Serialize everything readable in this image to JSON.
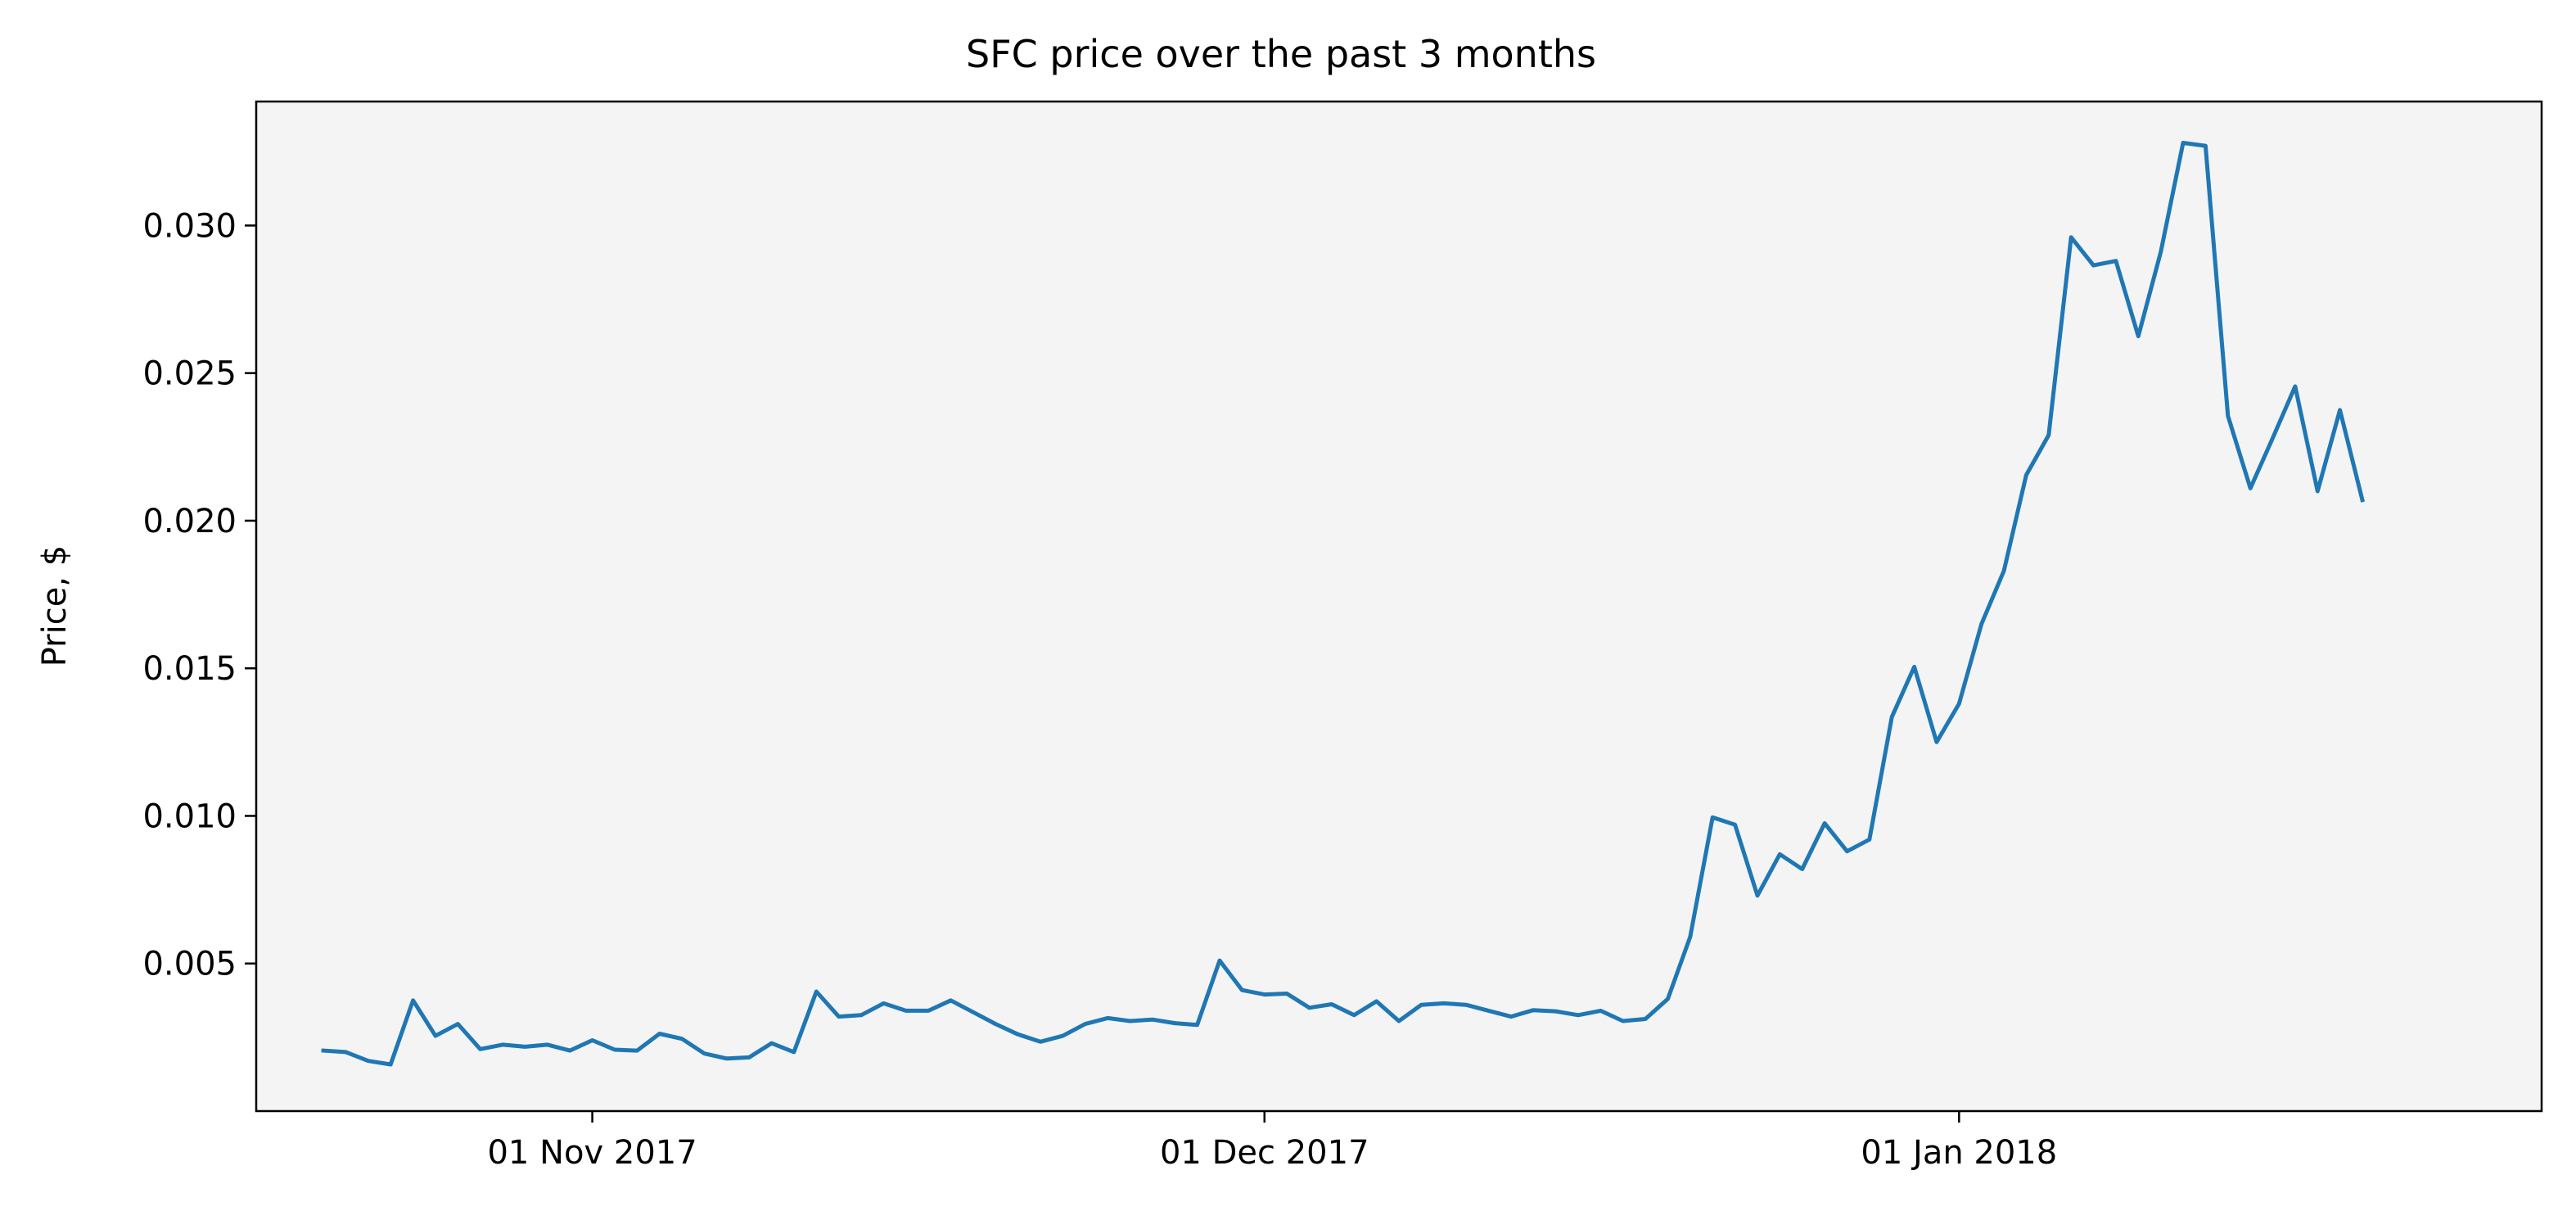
{
  "chart_data": {
    "type": "line",
    "title": "SFC price over the past 3 months",
    "xlabel": "",
    "ylabel": "Price, $",
    "x_start": "2017-10-20",
    "x_range": [
      "2017-10-17",
      "2018-01-27"
    ],
    "ylim": [
      0.0,
      0.0342
    ],
    "grid": false,
    "background": "#f4f4f4",
    "line_color": "#1f77b4",
    "x_ticks": [
      {
        "date": "2017-11-01",
        "label": "01 Nov 2017"
      },
      {
        "date": "2017-12-01",
        "label": "01 Dec 2017"
      },
      {
        "date": "2018-01-01",
        "label": "01 Jan 2018"
      }
    ],
    "y_ticks": [
      {
        "value": 0.005,
        "label": "0.005"
      },
      {
        "value": 0.01,
        "label": "0.010"
      },
      {
        "value": 0.015,
        "label": "0.015"
      },
      {
        "value": 0.02,
        "label": "0.020"
      },
      {
        "value": 0.025,
        "label": "0.025"
      },
      {
        "value": 0.03,
        "label": "0.030"
      }
    ],
    "series": [
      {
        "name": "",
        "values": [
          0.00205,
          0.002,
          0.0017,
          0.00158,
          0.00375,
          0.00255,
          0.00295,
          0.0021,
          0.00225,
          0.00218,
          0.00225,
          0.00205,
          0.0024,
          0.00208,
          0.00205,
          0.00262,
          0.00245,
          0.00195,
          0.00178,
          0.00182,
          0.0023,
          0.002,
          0.00405,
          0.0032,
          0.00325,
          0.00365,
          0.0034,
          0.0034,
          0.00375,
          0.00335,
          0.00295,
          0.0026,
          0.00235,
          0.00255,
          0.00295,
          0.00315,
          0.00305,
          0.0031,
          0.00298,
          0.00292,
          0.0051,
          0.0041,
          0.00395,
          0.00398,
          0.0035,
          0.00362,
          0.00325,
          0.00372,
          0.00305,
          0.0036,
          0.00365,
          0.0036,
          0.0034,
          0.0032,
          0.00342,
          0.00338,
          0.00325,
          0.0034,
          0.00305,
          0.00312,
          0.0038,
          0.0059,
          0.00995,
          0.0097,
          0.0073,
          0.0087,
          0.0082,
          0.00975,
          0.0088,
          0.0092,
          0.01335,
          0.01505,
          0.0125,
          0.0138,
          0.0165,
          0.0183,
          0.02155,
          0.0229,
          0.0296,
          0.02865,
          0.0288,
          0.02625,
          0.0291,
          0.0328,
          0.0327,
          0.02355,
          0.0211,
          0.0228,
          0.02455,
          0.021,
          0.02375,
          0.0207
        ]
      }
    ]
  }
}
